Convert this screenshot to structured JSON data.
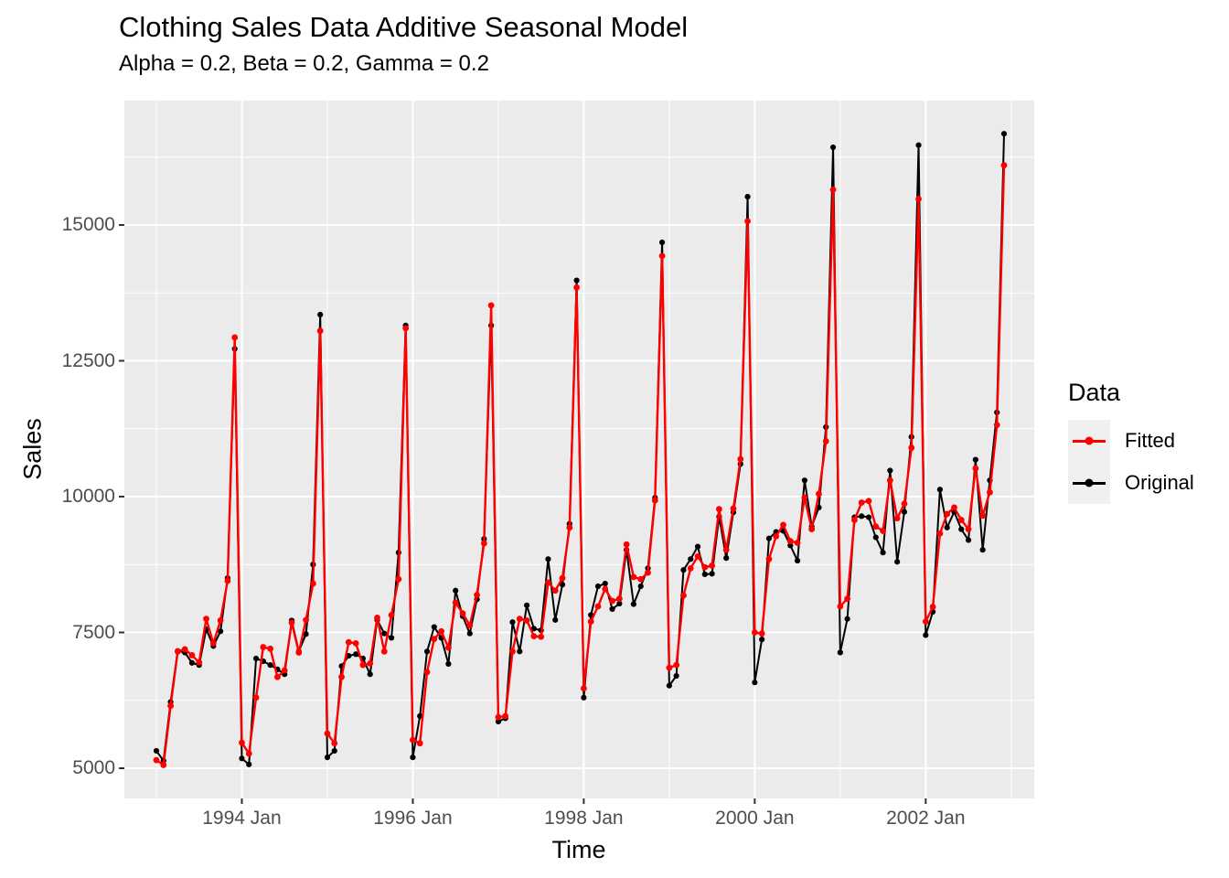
{
  "header": {
    "title": "Clothing Sales Data Additive Seasonal Model",
    "subtitle": "Alpha = 0.2, Beta = 0.2, Gamma = 0.2"
  },
  "axes": {
    "x_label": "Time",
    "y_label": "Sales"
  },
  "legend": {
    "title": "Data",
    "items": [
      {
        "label": "Fitted",
        "color": "#FF0000"
      },
      {
        "label": "Original",
        "color": "#000000"
      }
    ]
  },
  "colors": {
    "panel_background": "#EBEBEB",
    "grid": "#FFFFFF",
    "tick_marks": "#333333",
    "axis_text": "#4D4D4D",
    "legend_key_background": "#F0F0F0",
    "fitted": "#FF0000",
    "original": "#000000"
  },
  "chart_data": {
    "type": "line",
    "title": "Clothing Sales Data Additive Seasonal Model",
    "subtitle": "Alpha = 0.2, Beta = 0.2, Gamma = 0.2",
    "xlabel": "Time",
    "ylabel": "Sales",
    "frequency": "monthly",
    "x_start": "1993 Jan",
    "x_end": "2002 Dec",
    "x_tick_labels": [
      "1994 Jan",
      "1996 Jan",
      "1998 Jan",
      "2000 Jan",
      "2002 Jan"
    ],
    "x_tick_years": [
      1994,
      1996,
      1998,
      2000,
      2002
    ],
    "x_minor_years": [
      1993,
      1995,
      1997,
      1999,
      2001,
      2003
    ],
    "y_ticks": [
      5000,
      7500,
      10000,
      12500,
      15000
    ],
    "y_minor_ticks": [
      6250,
      8750,
      11250,
      13750,
      16250
    ],
    "ylim": [
      4450,
      17300
    ],
    "grid": true,
    "legend_position": "right",
    "series": [
      {
        "name": "Fitted",
        "color": "#FF0000",
        "values": [
          5150,
          5060,
          6150,
          7150,
          7190,
          7080,
          6950,
          7750,
          7300,
          7720,
          8450,
          12930,
          5470,
          5270,
          6300,
          7230,
          7200,
          6680,
          6800,
          7680,
          7130,
          7730,
          8400,
          13050,
          5640,
          5460,
          6680,
          7320,
          7300,
          6900,
          6930,
          7770,
          7150,
          7820,
          8480,
          13100,
          5520,
          5460,
          6770,
          7380,
          7520,
          7220,
          8050,
          7850,
          7630,
          8190,
          9140,
          13520,
          5940,
          5960,
          7150,
          7750,
          7720,
          7430,
          7420,
          8420,
          8270,
          8500,
          9430,
          13850,
          6470,
          7700,
          7980,
          8300,
          8080,
          8120,
          9120,
          8520,
          8480,
          8600,
          9930,
          14430,
          6850,
          6900,
          8180,
          8680,
          8900,
          8700,
          8730,
          9770,
          9020,
          9780,
          10690,
          15070,
          7500,
          7480,
          8850,
          9270,
          9480,
          9180,
          9150,
          9980,
          9400,
          10050,
          11020,
          15650,
          7980,
          8120,
          9570,
          9890,
          9920,
          9450,
          9370,
          10300,
          9600,
          9870,
          10900,
          15480,
          7700,
          7970,
          9320,
          9680,
          9800,
          9570,
          9400,
          10520,
          9650,
          10080,
          11320,
          16100
        ]
      },
      {
        "name": "Original",
        "color": "#000000",
        "values": [
          5320,
          5140,
          6220,
          7160,
          7130,
          6940,
          6900,
          7560,
          7250,
          7520,
          8500,
          12720,
          5180,
          5070,
          7020,
          6970,
          6900,
          6820,
          6730,
          7720,
          7150,
          7470,
          8750,
          13350,
          5200,
          5320,
          6880,
          7070,
          7100,
          7020,
          6730,
          7730,
          7480,
          7400,
          8970,
          13150,
          5200,
          5960,
          7150,
          7600,
          7400,
          6920,
          8270,
          7800,
          7480,
          8110,
          9220,
          13150,
          5860,
          5920,
          7690,
          7150,
          8000,
          7570,
          7540,
          8850,
          7730,
          8380,
          9500,
          13980,
          6300,
          7820,
          8350,
          8400,
          7930,
          8030,
          9020,
          8020,
          8350,
          8680,
          9980,
          14680,
          6520,
          6700,
          8650,
          8850,
          9080,
          8570,
          8580,
          9630,
          8870,
          9710,
          10600,
          15520,
          6580,
          7370,
          9230,
          9350,
          9370,
          9100,
          8820,
          10300,
          9450,
          9800,
          11280,
          16430,
          7130,
          7750,
          9620,
          9640,
          9620,
          9250,
          8970,
          10480,
          8800,
          9720,
          11100,
          16470,
          7450,
          7880,
          10130,
          9430,
          9720,
          9400,
          9200,
          10680,
          9020,
          10300,
          11550,
          16680
        ]
      }
    ]
  }
}
